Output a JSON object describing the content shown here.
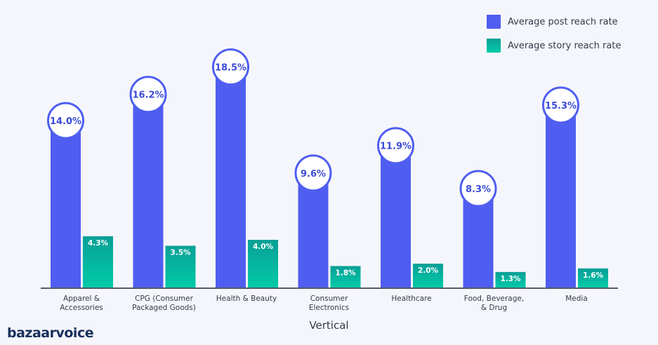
{
  "chart_data": {
    "type": "bar",
    "title": "",
    "xlabel": "Vertical",
    "ylabel": "",
    "ylim": [
      0,
      19.5
    ],
    "grid": false,
    "legend_placement": "top-right",
    "categories": [
      [
        "Apparel &",
        "Accessories"
      ],
      [
        "CPG (Consumer",
        "Packaged Goods)"
      ],
      [
        "Health & Beauty"
      ],
      [
        "Consumer",
        "Electronics"
      ],
      [
        "Healthcare"
      ],
      [
        "Food, Beverage,",
        "& Drug"
      ],
      [
        "Media"
      ]
    ],
    "series": [
      {
        "name": "Average post reach rate",
        "values": [
          14.0,
          16.2,
          18.5,
          9.6,
          11.9,
          8.3,
          15.3
        ],
        "labels": [
          "14.0%",
          "16.2%",
          "18.5%",
          "9.6%",
          "11.9%",
          "8.3%",
          "15.3%"
        ],
        "color": "#4f5ef0"
      },
      {
        "name": "Average story reach rate",
        "values": [
          4.3,
          3.5,
          4.0,
          1.8,
          2.0,
          1.3,
          1.6
        ],
        "labels": [
          "4.3%",
          "3.5%",
          "4.0%",
          "1.8%",
          "2.0%",
          "1.3%",
          "1.6%"
        ],
        "color": "#0bb39e"
      }
    ]
  },
  "brand": {
    "logo": "bazaarvoice"
  }
}
